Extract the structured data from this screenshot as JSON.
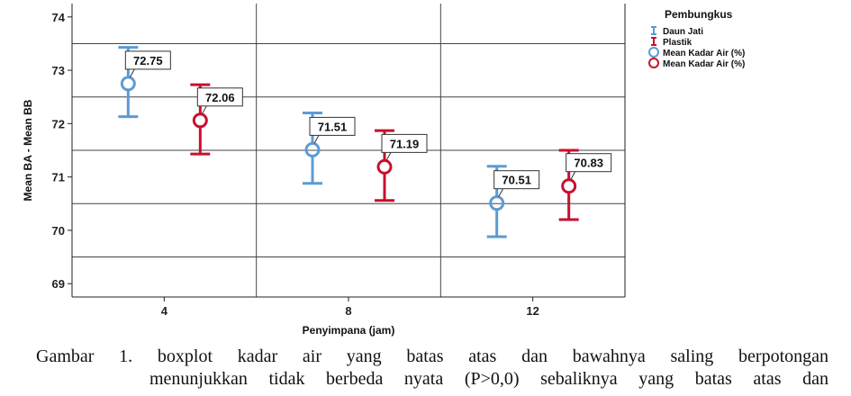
{
  "chart_data": {
    "type": "errorbar",
    "xlabel": "Penyimpana (jam)",
    "ylabel": "Mean BA - Mean BB",
    "categories": [
      "4",
      "8",
      "12"
    ],
    "ylim": [
      68.75,
      74.25
    ],
    "yticks": [
      69,
      70,
      71,
      72,
      73,
      74
    ],
    "grid": true,
    "legend_position": "top-right",
    "legend_title": "Pembungkus",
    "legend": [
      {
        "symbol": "errorbar",
        "label": "Daun Jati",
        "color": "#5b9bd5"
      },
      {
        "symbol": "errorbar",
        "label": "Plastik",
        "color": "#c8102e"
      },
      {
        "symbol": "circle",
        "label": "Mean Kadar Air (%)",
        "color": "#5b9bd5"
      },
      {
        "symbol": "circle",
        "label": "Mean Kadar Air (%)",
        "color": "#c8102e"
      }
    ],
    "series": [
      {
        "name": "Daun Jati",
        "color": "#5b9bd5",
        "mean": [
          72.75,
          71.51,
          70.51
        ],
        "mean_labels": [
          "72.75",
          "71.51",
          "70.51"
        ],
        "upper": [
          73.43,
          72.2,
          71.2
        ],
        "lower": [
          72.13,
          70.88,
          69.88
        ]
      },
      {
        "name": "Plastik",
        "color": "#c8102e",
        "mean": [
          72.06,
          71.19,
          70.83
        ],
        "mean_labels": [
          "72.06",
          "71.19",
          "70.83"
        ],
        "upper": [
          72.73,
          71.87,
          71.5
        ],
        "lower": [
          71.43,
          70.56,
          70.2
        ]
      }
    ]
  },
  "caption": {
    "line1": "Gambar 1. boxplot kadar air yang batas atas dan bawahnya saling berpotongan",
    "line2": "menunjukkan tidak berbeda nyata (P>0,0) sebaliknya yang batas atas dan"
  }
}
